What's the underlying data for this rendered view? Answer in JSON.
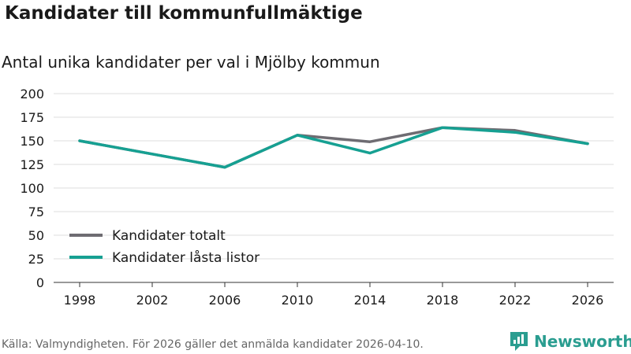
{
  "page": {
    "title": "Kandidater till kommunfullmäktige",
    "subtitle": "Antal unika kandidater per val i Mjölby kommun",
    "source": "Källa: Valmyndigheten. För 2026 gäller det anmälda kandidater 2026-04-10.",
    "brand": "Newsworthy"
  },
  "chart_data": {
    "type": "line",
    "title": "Kandidater till kommunfullmäktige",
    "subtitle": "Antal unika kandidater per val i Mjölby kommun",
    "x": [
      1998,
      2002,
      2006,
      2010,
      2014,
      2018,
      2022,
      2026
    ],
    "series": [
      {
        "name": "Kandidater totalt",
        "color": "#6e6c72",
        "values": [
          150,
          136,
          122,
          156,
          149,
          164,
          161,
          147
        ]
      },
      {
        "name": "Kandidater låsta listor",
        "color": "#16a092",
        "values": [
          150,
          136,
          122,
          156,
          137,
          164,
          159,
          147
        ]
      }
    ],
    "ylim": [
      0,
      200
    ],
    "yticks": [
      0,
      25,
      50,
      75,
      100,
      125,
      150,
      175,
      200
    ],
    "xticks": [
      "1998",
      "2002",
      "2006",
      "2010",
      "2014",
      "2018",
      "2022",
      "2026"
    ],
    "xlabel": "",
    "ylabel": "",
    "grid": true,
    "legend_position": "bottom-left"
  }
}
